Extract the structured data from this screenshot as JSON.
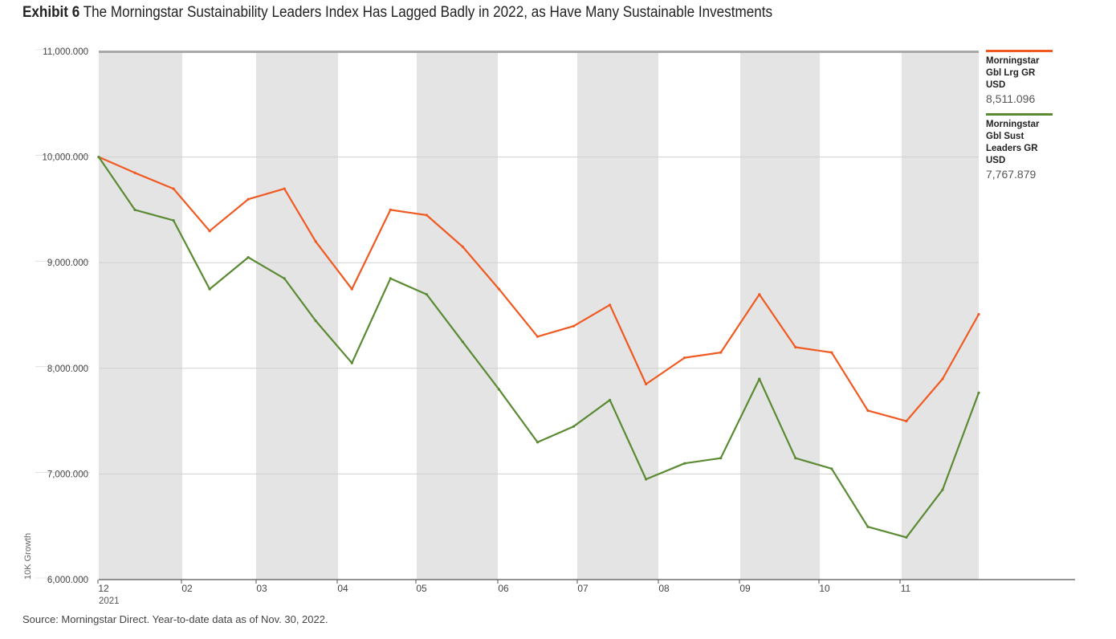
{
  "header": {
    "exhibit": "Exhibit 6",
    "title": "The Morningstar Sustainability Leaders Index Has Lagged Badly in 2022, as Have Many Sustainable Investments"
  },
  "source": "Source: Morningstar Direct. Year-to-date data as of Nov. 30, 2022.",
  "legend": [
    {
      "name": "Morningstar Gbl Lrg GR USD",
      "value": "8,511.096",
      "color": "#f05a22"
    },
    {
      "name": "Morningstar Gbl Sust Leaders GR USD",
      "value": "7,767.879",
      "color": "#5a8a32"
    }
  ],
  "chart_data": {
    "type": "line",
    "ylabel": "10K Growth",
    "ylim": [
      6000000,
      11000000
    ],
    "y_ticks": [
      "11,000.000",
      "10,000.000",
      "9,000.000",
      "8,000.000",
      "7,000.000",
      "6,000.000"
    ],
    "x_ticks": [
      "12",
      "02",
      "03",
      "04",
      "05",
      "06",
      "07",
      "08",
      "09",
      "10",
      "11"
    ],
    "x_year_label": "2021",
    "x": [
      "2021-11-30",
      "2021-12-15",
      "2021-12-31",
      "2022-01-15",
      "2022-01-31",
      "2022-02-15",
      "2022-02-28",
      "2022-03-15",
      "2022-03-31",
      "2022-04-15",
      "2022-04-30",
      "2022-05-15",
      "2022-05-31",
      "2022-06-15",
      "2022-06-30",
      "2022-07-15",
      "2022-07-31",
      "2022-08-15",
      "2022-08-31",
      "2022-09-15",
      "2022-09-30",
      "2022-10-15",
      "2022-10-31",
      "2022-11-15",
      "2022-11-30"
    ],
    "series": [
      {
        "name": "Morningstar Gbl Lrg GR USD",
        "color": "#f05a22",
        "values": [
          10000000,
          9850000,
          9700000,
          9300000,
          9600000,
          9700000,
          9200000,
          8750000,
          9500000,
          9450000,
          9150000,
          8750000,
          8300000,
          8400000,
          8600000,
          7850000,
          8100000,
          8150000,
          8700000,
          8200000,
          8150000,
          7600000,
          7500000,
          7900000,
          8511096
        ]
      },
      {
        "name": "Morningstar Gbl Sust Leaders GR USD",
        "color": "#5a8a32",
        "values": [
          10000000,
          9500000,
          9400000,
          8750000,
          9050000,
          8850000,
          8450000,
          8050000,
          8850000,
          8700000,
          8250000,
          7800000,
          7300000,
          7450000,
          7700000,
          6950000,
          7100000,
          7150000,
          7900000,
          7150000,
          7050000,
          6500000,
          6400000,
          6850000,
          7767879
        ]
      }
    ]
  }
}
